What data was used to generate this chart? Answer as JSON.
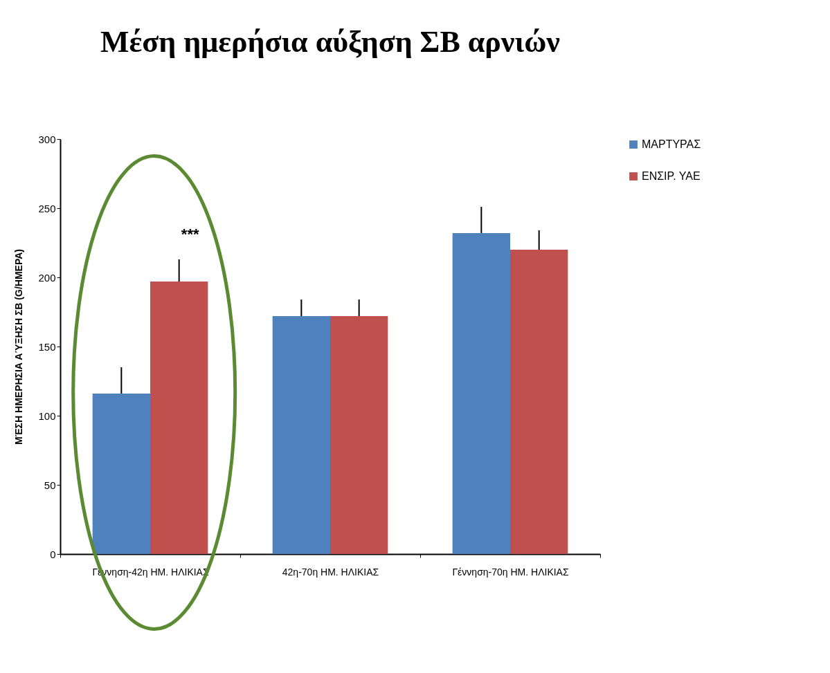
{
  "chart_data": {
    "type": "bar",
    "title": "Μέση ημερήσια αύξηση ΣΒ αρνιών",
    "ylabel": "ΜΈΣΗ ΗΜΕΡΗΣΙΑ ΑΎΞΗΣΗ ΣΒ (G/ΗΜΕΡΑ)",
    "categories": [
      "Γέννηση-42η ΗΜ. ΗΛΙΚΙΑΣ",
      "42η-70η ΗΜ. ΗΛΙΚΙΑΣ",
      "Γέννηση-70η ΗΜ. ΗΛΙΚΙΑΣ"
    ],
    "series": [
      {
        "name": "ΜΑΡΤΥΡΑΣ",
        "color": "#4f81bd",
        "values": [
          116,
          172,
          232
        ],
        "errors": [
          [
            116,
            135
          ],
          [
            172,
            184
          ],
          [
            232,
            251
          ]
        ]
      },
      {
        "name": "ΕΝΣΙΡ. ΥΑΕ",
        "color": "#c0504d",
        "values": [
          197,
          172,
          220
        ],
        "errors": [
          [
            197,
            213
          ],
          [
            172,
            184
          ],
          [
            220,
            234
          ]
        ]
      }
    ],
    "annotations": [
      "***"
    ],
    "ylim": [
      0,
      300
    ],
    "yticks": [
      0,
      50,
      100,
      150,
      200,
      250,
      300
    ],
    "grid": false,
    "legend": "right"
  }
}
